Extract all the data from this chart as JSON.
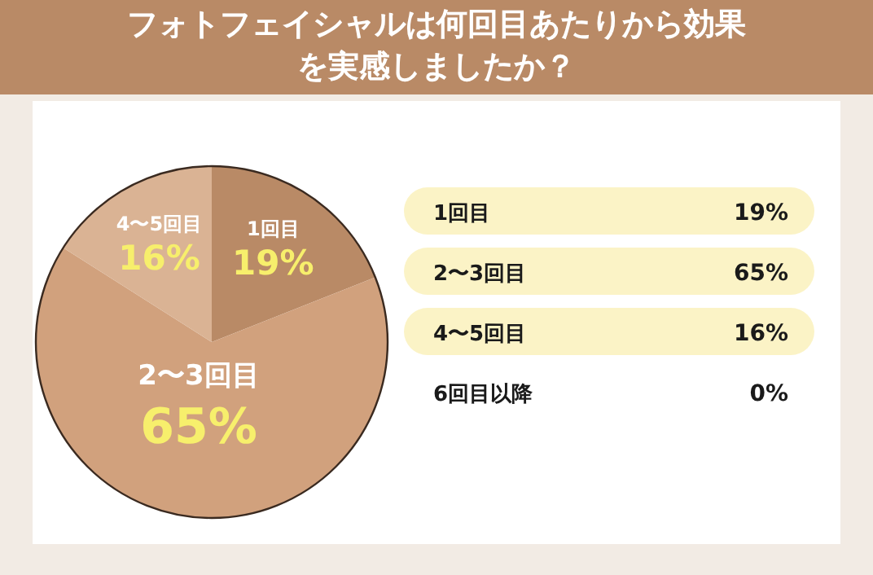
{
  "chart_data": {
    "type": "pie",
    "title": "フォトフェイシャルは何回目あたりから効果を実感しましたか？",
    "categories": [
      "1回目",
      "2〜3回目",
      "4〜5回目",
      "6回目以降"
    ],
    "values": [
      19,
      65,
      16,
      0
    ],
    "value_labels": [
      "19%",
      "65%",
      "16%",
      "0%"
    ],
    "colors": [
      "#b98a66",
      "#d1a17d",
      "#dab394",
      null
    ],
    "data_labels": true
  }
}
